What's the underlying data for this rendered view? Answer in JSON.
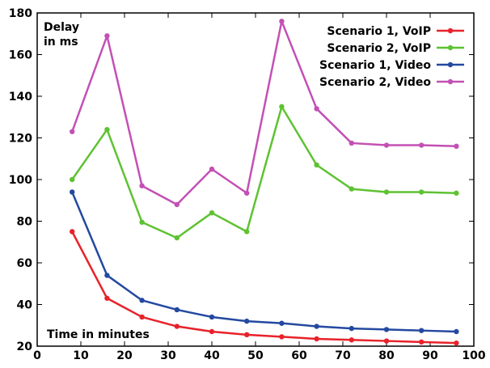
{
  "chart_data": {
    "type": "line",
    "ylabel_lines": [
      "Delay",
      "in ms"
    ],
    "xlabel": "Time in minutes",
    "xlim": [
      0,
      100
    ],
    "ylim": [
      20,
      180
    ],
    "xticks": [
      0,
      10,
      20,
      30,
      40,
      50,
      60,
      70,
      80,
      90,
      100
    ],
    "yticks": [
      20,
      40,
      60,
      80,
      100,
      120,
      140,
      160,
      180
    ],
    "grid": false,
    "legend_position": "top-right",
    "x": [
      8,
      16,
      24,
      32,
      40,
      48,
      56,
      64,
      72,
      80,
      88,
      96
    ],
    "series": [
      {
        "name": "Scenario 1, VoIP",
        "color": "#e8222a",
        "values": [
          75,
          43,
          34,
          29.5,
          27,
          25.5,
          24.5,
          23.5,
          23,
          22.5,
          22,
          21.5
        ]
      },
      {
        "name": "Scenario 2, VoIP",
        "color": "#5ec232",
        "values": [
          100,
          124,
          79.5,
          72,
          84,
          75,
          135,
          107,
          95.5,
          94,
          94,
          93.5
        ]
      },
      {
        "name": "Scenario 1, Video",
        "color": "#2449a0",
        "values": [
          94,
          54,
          42,
          37.5,
          34,
          32,
          31,
          29.5,
          28.5,
          28,
          27.5,
          27
        ]
      },
      {
        "name": "Scenario 2, Video",
        "color": "#c350b4",
        "values": [
          123,
          169,
          97,
          88,
          105,
          93.5,
          176,
          134,
          117.5,
          116.5,
          116.5,
          116
        ]
      }
    ]
  }
}
